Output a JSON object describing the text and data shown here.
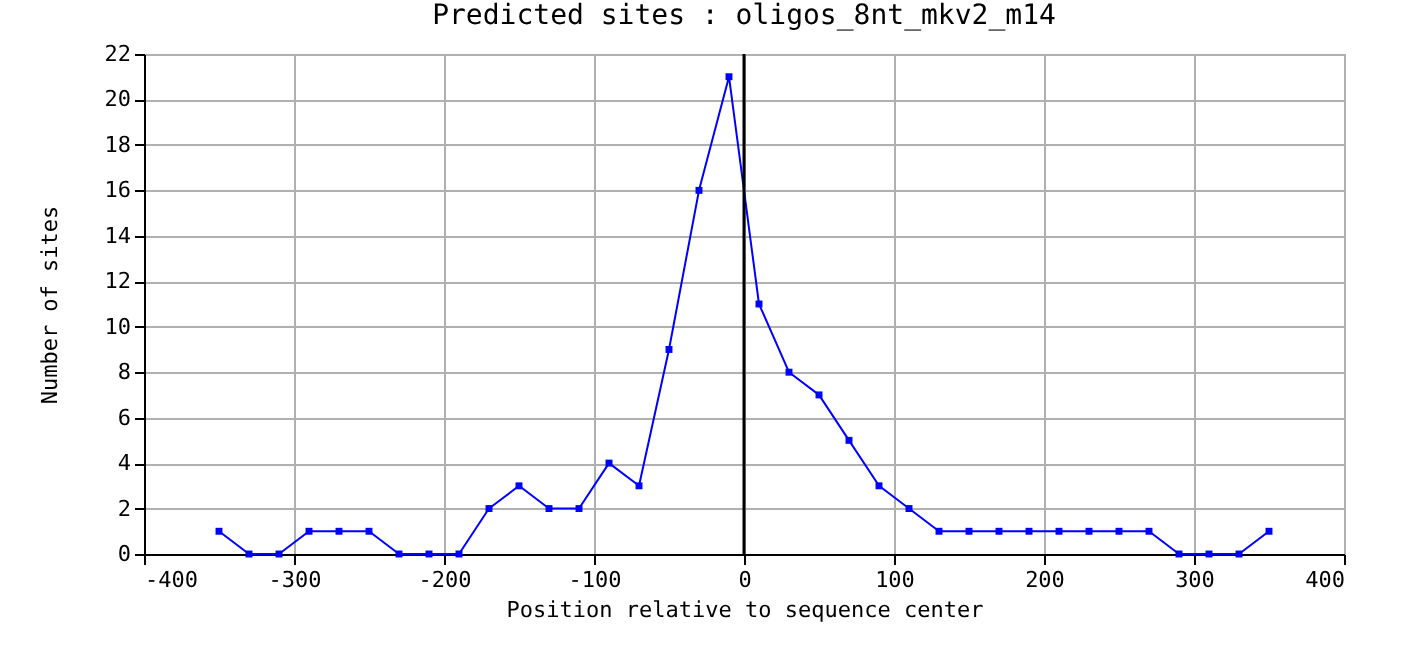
{
  "chart_data": {
    "type": "line",
    "title": "Predicted sites : oligos_8nt_mkv2_m14",
    "xlabel": "Position relative to sequence center",
    "ylabel": "Number of sites",
    "x": [
      -350,
      -330,
      -310,
      -290,
      -270,
      -250,
      -230,
      -210,
      -190,
      -170,
      -150,
      -130,
      -110,
      -90,
      -70,
      -50,
      -30,
      -10,
      10,
      30,
      50,
      70,
      90,
      110,
      130,
      150,
      170,
      190,
      210,
      230,
      250,
      270,
      290,
      310,
      330,
      350
    ],
    "series": [
      {
        "color": "#0000ff",
        "values": [
          1,
          0,
          0,
          1,
          1,
          1,
          0,
          0,
          0,
          2,
          3,
          2,
          2,
          4,
          3,
          9,
          16,
          21,
          11,
          8,
          7,
          5,
          3,
          2,
          1,
          1,
          1,
          1,
          1,
          1,
          1,
          1,
          0,
          0,
          0,
          1
        ]
      }
    ],
    "xlim": [
      -400,
      400
    ],
    "xticks": [
      -400,
      -300,
      -200,
      -100,
      0,
      100,
      200,
      300,
      400
    ],
    "ylim": [
      0,
      22
    ],
    "yticks": [
      0,
      2,
      4,
      6,
      8,
      10,
      12,
      14,
      16,
      18,
      20,
      22
    ],
    "ref_lines": [
      {
        "axis": "x",
        "value": 0,
        "color": "#000000"
      }
    ],
    "grid": true,
    "marker": "square",
    "line_style": "solid"
  }
}
